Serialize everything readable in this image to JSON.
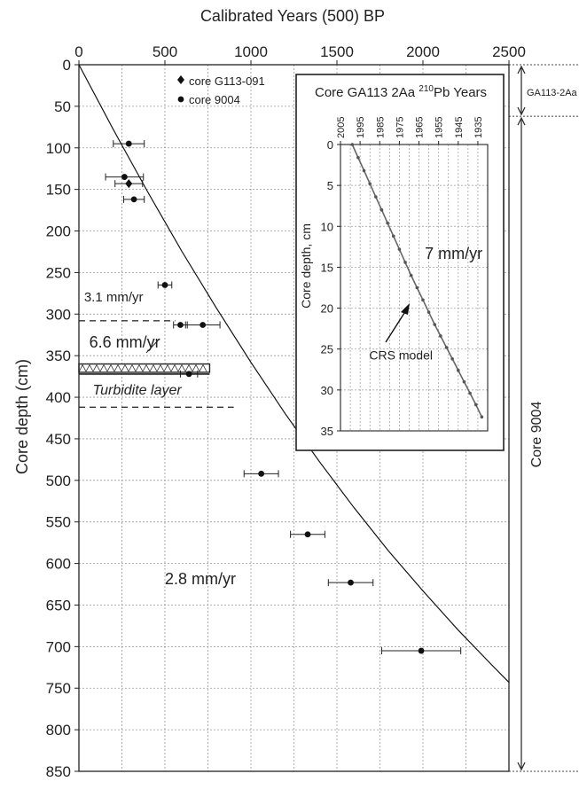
{
  "chart_data": [
    {
      "type": "scatter",
      "xlabel": "Calibrated Years (500) BP",
      "ylabel": "Core depth (cm)",
      "xlim": [
        0,
        2500
      ],
      "ylim": [
        850,
        0
      ],
      "x_ticks": [
        0,
        500,
        1000,
        1500,
        2000,
        2500
      ],
      "y_ticks": [
        0,
        50,
        100,
        150,
        200,
        250,
        300,
        350,
        400,
        450,
        500,
        550,
        600,
        650,
        700,
        750,
        800,
        850
      ],
      "grid": true,
      "legend": [
        {
          "label": "core G113-091",
          "marker": "diamond"
        },
        {
          "label": "core 9004",
          "marker": "circle"
        }
      ],
      "series": [
        {
          "name": "core 9004",
          "marker": "circle",
          "x": [
            290,
            265,
            320,
            500,
            590,
            720,
            640,
            1060,
            1330,
            1580,
            1990
          ],
          "y": [
            95,
            135,
            162,
            265,
            313,
            313,
            372,
            492,
            565,
            623,
            705
          ],
          "x_err": [
            90,
            110,
            60,
            40,
            40,
            100,
            50,
            100,
            100,
            130,
            230
          ]
        },
        {
          "name": "core G113-091",
          "marker": "diamond",
          "x": [
            290
          ],
          "y": [
            143
          ],
          "x_err": [
            80
          ]
        }
      ],
      "model_curve": {
        "x": [
          0,
          200,
          400,
          600,
          800,
          1000,
          1200,
          1400,
          1600,
          1800,
          2000,
          2200,
          2400,
          2500
        ],
        "y": [
          0,
          78,
          153,
          225,
          293,
          358,
          420,
          478,
          533,
          585,
          633,
          679,
          722,
          743
        ]
      },
      "annotations": [
        {
          "text": "3.1 mm/yr",
          "x": 30,
          "y": 285
        },
        {
          "text": "6.6 mm/yr",
          "x": 60,
          "y": 340
        },
        {
          "text": "Turbidite layer",
          "x": 80,
          "y": 397
        },
        {
          "text": "2.8 mm/yr",
          "x": 500,
          "y": 625
        }
      ],
      "dashed_lines": [
        {
          "y": 308,
          "x_end": 560
        },
        {
          "y": 412,
          "x_end": 900
        }
      ],
      "turbidite_band": {
        "y0": 360,
        "y1": 370,
        "x_end": 760
      },
      "side_brackets": [
        {
          "label": "GA113-2Aa",
          "y0": 0,
          "y1": 62
        },
        {
          "label": "Core  9004",
          "y0": 62,
          "y1": 850
        }
      ]
    },
    {
      "type": "line",
      "title": "Core GA113 2Aa ",
      "title_sup": "210",
      "title_suffix": "Pb Years",
      "ylabel": "Core depth, cm",
      "xlim": [
        2005,
        1930
      ],
      "ylim": [
        35,
        0
      ],
      "x_ticks": [
        2005,
        1995,
        1985,
        1975,
        1965,
        1955,
        1945,
        1935
      ],
      "y_ticks": [
        0,
        5,
        10,
        15,
        20,
        25,
        30,
        35
      ],
      "grid": true,
      "series": [
        {
          "x": [
            1999,
            1996,
            1993,
            1990,
            1987,
            1984,
            1981,
            1978,
            1975,
            1972,
            1969,
            1966,
            1963,
            1960,
            1957,
            1954,
            1951,
            1948,
            1945,
            1942,
            1939,
            1936,
            1933
          ],
          "y": [
            0,
            1.6,
            3.2,
            4.8,
            6.4,
            8.0,
            9.6,
            11.2,
            12.8,
            14.4,
            16.0,
            17.5,
            19.0,
            20.5,
            22.0,
            23.4,
            24.8,
            26.2,
            27.6,
            29.0,
            30.4,
            31.8,
            33.3
          ]
        }
      ],
      "annotations": [
        {
          "text": "7 mm/yr",
          "x": 1962,
          "y": 14
        },
        {
          "text": "CRS model",
          "x": 1975,
          "y": 26.3
        }
      ]
    }
  ]
}
